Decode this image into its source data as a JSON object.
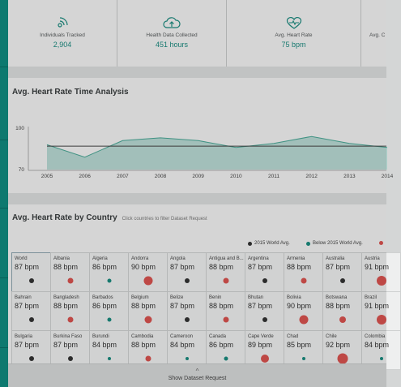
{
  "stats": [
    {
      "label": "Individuals Tracked",
      "value": "2,904",
      "icon": "wifi-person-icon"
    },
    {
      "label": "Health Data Collected",
      "value": "451 hours",
      "icon": "cloud-upload-icon"
    },
    {
      "label": "Avg. Heart Rate",
      "value": "75 bpm",
      "icon": "heart-pulse-icon"
    },
    {
      "label": "Avg. C",
      "value": "",
      "icon": ""
    }
  ],
  "time_analysis": {
    "title": "Avg. Heart Rate Time Analysis"
  },
  "chart_data": {
    "type": "area",
    "x": [
      2005,
      2006,
      2007,
      2008,
      2009,
      2010,
      2011,
      2012,
      2013,
      2014
    ],
    "series": [
      {
        "values": [
          88,
          79,
          91,
          93,
          91,
          86,
          89,
          94,
          89,
          86
        ]
      }
    ],
    "reference": 87,
    "ylim": [
      70,
      100
    ],
    "yticks": [
      "100",
      "70"
    ],
    "xticks": [
      "2005",
      "2006",
      "2007",
      "2008",
      "2009",
      "2010",
      "2011",
      "2012",
      "2013",
      "2014"
    ],
    "colors": {
      "area": "#9fcfc6",
      "line": "#4aa796",
      "reference": "#444444"
    }
  },
  "country": {
    "title": "Avg. Heart Rate by Country",
    "subtitle": "Click countries to filter Dataset Request",
    "legend": [
      {
        "label": "2015 World Avg.",
        "color": "#333333"
      },
      {
        "label": "Below 2015 World Avg.",
        "color": "#1a8a7e"
      },
      {
        "label": "",
        "color": "#d9534f"
      }
    ],
    "cells": [
      {
        "name": "World",
        "bpm": "87 bpm",
        "status": "avg",
        "size": 6
      },
      {
        "name": "Albania",
        "bpm": "88 bpm",
        "status": "above",
        "size": 7
      },
      {
        "name": "Algeria",
        "bpm": "86 bpm",
        "status": "below",
        "size": 5
      },
      {
        "name": "Andorra",
        "bpm": "90 bpm",
        "status": "above",
        "size": 11
      },
      {
        "name": "Angola",
        "bpm": "87 bpm",
        "status": "avg",
        "size": 6
      },
      {
        "name": "Antigua and B...",
        "bpm": "88 bpm",
        "status": "above",
        "size": 7
      },
      {
        "name": "Argentina",
        "bpm": "87 bpm",
        "status": "avg",
        "size": 6
      },
      {
        "name": "Armenia",
        "bpm": "88 bpm",
        "status": "above",
        "size": 7
      },
      {
        "name": "Australia",
        "bpm": "87 bpm",
        "status": "avg",
        "size": 6
      },
      {
        "name": "Austria",
        "bpm": "91 bpm",
        "status": "above",
        "size": 12
      },
      {
        "name": "Bahrain",
        "bpm": "87 bpm",
        "status": "avg",
        "size": 6
      },
      {
        "name": "Bangladesh",
        "bpm": "88 bpm",
        "status": "above",
        "size": 7
      },
      {
        "name": "Barbados",
        "bpm": "86 bpm",
        "status": "below",
        "size": 5
      },
      {
        "name": "Belgium",
        "bpm": "88 bpm",
        "status": "above",
        "size": 9
      },
      {
        "name": "Belize",
        "bpm": "87 bpm",
        "status": "avg",
        "size": 6
      },
      {
        "name": "Benin",
        "bpm": "88 bpm",
        "status": "above",
        "size": 7
      },
      {
        "name": "Bhutan",
        "bpm": "87 bpm",
        "status": "avg",
        "size": 6
      },
      {
        "name": "Bolivia",
        "bpm": "90 bpm",
        "status": "above",
        "size": 11
      },
      {
        "name": "Botswana",
        "bpm": "88 bpm",
        "status": "above",
        "size": 8
      },
      {
        "name": "Brazil",
        "bpm": "91 bpm",
        "status": "above",
        "size": 12
      },
      {
        "name": "Bulgaria",
        "bpm": "87 bpm",
        "status": "avg",
        "size": 6
      },
      {
        "name": "Burkina Faso",
        "bpm": "87 bpm",
        "status": "avg",
        "size": 6
      },
      {
        "name": "Burundi",
        "bpm": "84 bpm",
        "status": "below",
        "size": 4
      },
      {
        "name": "Cambodia",
        "bpm": "88 bpm",
        "status": "above",
        "size": 7
      },
      {
        "name": "Cameroon",
        "bpm": "84 bpm",
        "status": "below",
        "size": 4
      },
      {
        "name": "Canada",
        "bpm": "86 bpm",
        "status": "below",
        "size": 5
      },
      {
        "name": "Cape Verde",
        "bpm": "89 bpm",
        "status": "above",
        "size": 10
      },
      {
        "name": "Chad",
        "bpm": "85 bpm",
        "status": "below",
        "size": 4
      },
      {
        "name": "Chile",
        "bpm": "92 bpm",
        "status": "above",
        "size": 13
      },
      {
        "name": "Colombia",
        "bpm": "84 bpm",
        "status": "below",
        "size": 4
      }
    ]
  },
  "footer": {
    "caret": "^",
    "label": "Show Dataset Request"
  }
}
